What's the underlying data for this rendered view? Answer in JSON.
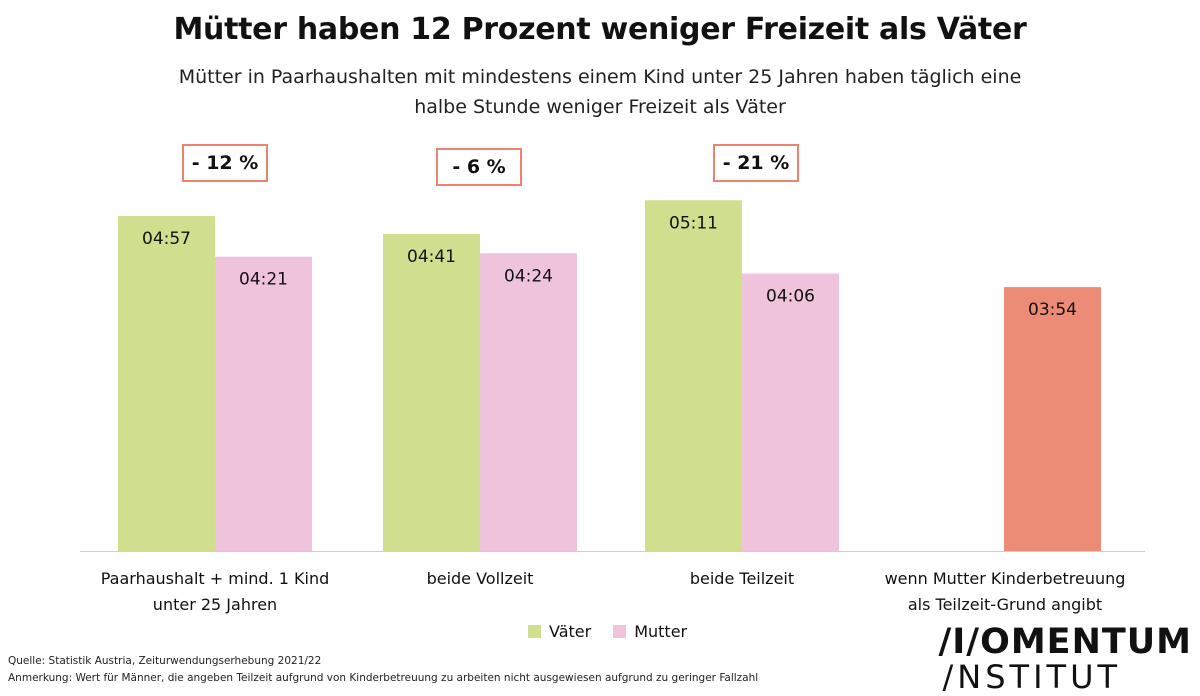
{
  "title": "Mütter haben 12 Prozent weniger Freizeit als Väter",
  "subtitle_line1": "Mütter in Paarhaushalten mit mindestens einem Kind unter 25 Jahren haben täglich eine",
  "subtitle_line2": "halbe Stunde weniger Freizeit als Väter",
  "differences": [
    "- 12 %",
    "- 6 %",
    "- 21 %"
  ],
  "legend": {
    "vaeter": "Väter",
    "mutter": "Mutter"
  },
  "colors": {
    "vaeter": "#cfdf8e",
    "mutter": "#f0c3dd",
    "highlight": "#ec8c76",
    "box": "#e8846f"
  },
  "footer": {
    "source": "Quelle: Statistik Austria, Zeiturwendungserhebung 2021/22",
    "note": "Anmerkung: Wert für Männer, die angeben Teilzeit aufgrund von Kinderbetreuung zu arbeiten nicht ausgewiesen aufgrund zu geringer Fallzahl"
  },
  "logo": {
    "line1": "/I/OMENTUM",
    "line2": "/NSTITUT"
  },
  "chart_data": {
    "type": "bar",
    "categories": [
      [
        "Paarhaushalt + mind. 1 Kind",
        "unter 25 Jahren"
      ],
      [
        "beide Vollzeit"
      ],
      [
        "beide Teilzeit"
      ],
      [
        "wenn Mutter Kinderbetreuung",
        "als Teilzeit-Grund angibt"
      ]
    ],
    "series": [
      {
        "name": "Väter",
        "values": [
          "04:57",
          "04:41",
          "05:11",
          null
        ]
      },
      {
        "name": "Mutter",
        "values": [
          "04:21",
          "04:24",
          "04:06",
          "03:54"
        ]
      }
    ],
    "highlight_last_category": true,
    "ylim_minutes": [
      0,
      360
    ],
    "grid": false,
    "legend_position": "bottom"
  }
}
